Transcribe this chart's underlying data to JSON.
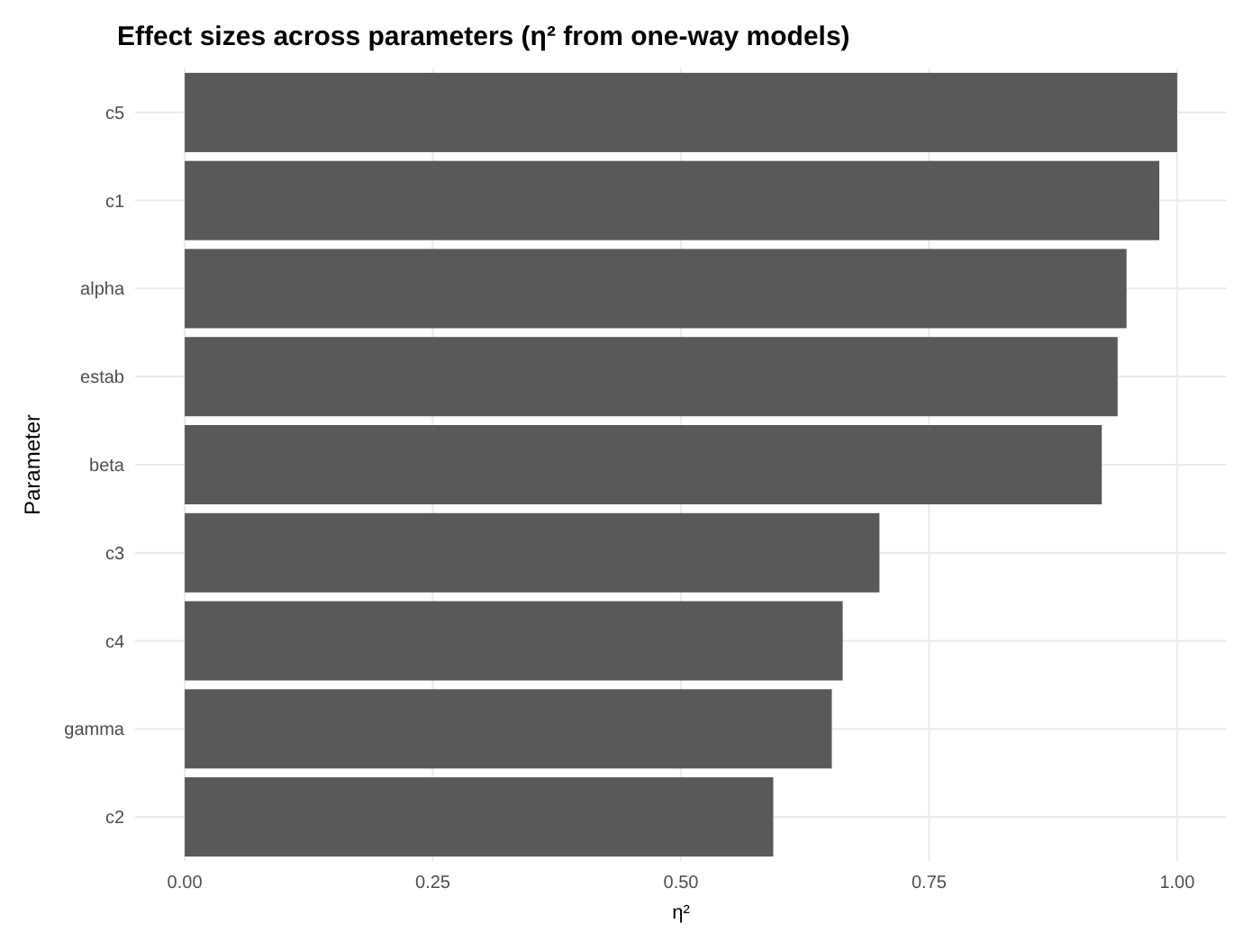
{
  "chart_data": {
    "type": "bar",
    "orientation": "horizontal",
    "title": "Effect sizes across parameters (η² from one-way models)",
    "xlabel": "η²",
    "ylabel": "Parameter",
    "categories": [
      "c5",
      "c1",
      "alpha",
      "estab",
      "beta",
      "c3",
      "c4",
      "gamma",
      "c2"
    ],
    "values": [
      1.0,
      0.982,
      0.949,
      0.94,
      0.924,
      0.7,
      0.663,
      0.652,
      0.593
    ],
    "color": "#595959",
    "xlim": [
      -0.05,
      1.05
    ],
    "xticks": [
      {
        "value": 0,
        "label": "0.00"
      },
      {
        "value": 0.25,
        "label": "0.25"
      },
      {
        "value": 0.5,
        "label": "0.50"
      },
      {
        "value": 0.75,
        "label": "0.75"
      },
      {
        "value": 1,
        "label": "1.00"
      }
    ],
    "grid": true
  }
}
